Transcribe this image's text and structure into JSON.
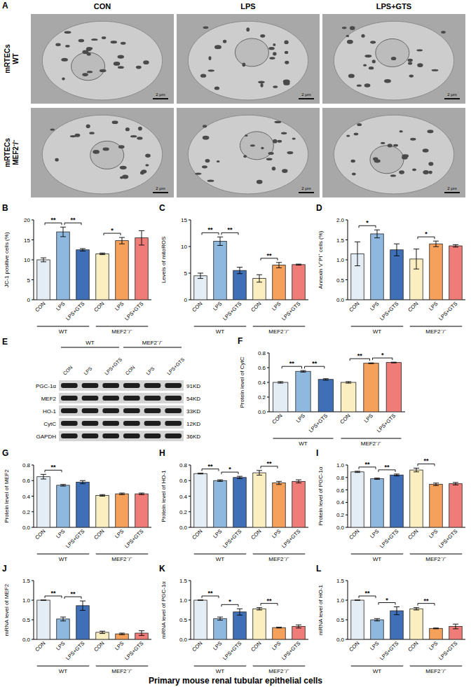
{
  "panel_a": {
    "panel": "A",
    "columns": [
      "CON",
      "LPS",
      "LPS+GTS"
    ],
    "rows": [
      {
        "label": [
          "mRTECs",
          "WT"
        ]
      },
      {
        "label": [
          "mRTECs",
          "MEF2⁻/⁻"
        ]
      }
    ],
    "scale_bar": "2 μm"
  },
  "panel_e": {
    "panel": "E",
    "groups": [
      {
        "label": "WT",
        "size": 3
      },
      {
        "label": "MEF2⁻/⁻",
        "size": 3
      }
    ],
    "lanes": [
      "CON",
      "LPS",
      "LPS+GTS",
      "CON",
      "LPS",
      "LPS+GTS"
    ],
    "rows": [
      {
        "name": "PGC-1α",
        "size": "91KD"
      },
      {
        "name": "MEF2",
        "size": "54KD"
      },
      {
        "name": "HO-1",
        "size": "33KD"
      },
      {
        "name": "CytC",
        "size": "12KD"
      },
      {
        "name": "GAPDH",
        "size": "36KD"
      }
    ]
  },
  "footer": "Primary mouse renal tubular epithelial cells",
  "chart_data": [
    {
      "type": "bar",
      "panel": "B",
      "y_label": "JC-1 positive cells (%)",
      "categories": [
        "CON",
        "LPS",
        "LPS+GTS",
        "CON",
        "LPS",
        "LPS+GTS"
      ],
      "groups": [
        {
          "label": "WT",
          "size": 3
        },
        {
          "label": "MEF2⁻/⁻",
          "size": 3
        }
      ],
      "values": [
        10,
        17,
        12.5,
        11.5,
        14.8,
        15.5
      ],
      "errors": [
        0.5,
        1.2,
        0.3,
        0.2,
        0.8,
        1.8
      ],
      "colors": [
        "#e4ecf4",
        "#8fb8de",
        "#3f6fb6",
        "#fbeec0",
        "#f5a15c",
        "#f07c78"
      ],
      "ylim": [
        0,
        20
      ],
      "yticks": [
        0,
        5,
        10,
        15,
        20
      ],
      "grid": false,
      "significance": [
        {
          "from": 0,
          "to": 1,
          "label": "**"
        },
        {
          "from": 1,
          "to": 2,
          "label": "**"
        },
        {
          "from": 3,
          "to": 4,
          "label": "*"
        }
      ]
    },
    {
      "type": "bar",
      "panel": "C",
      "y_label": "Levels of mitoROS",
      "categories": [
        "CON",
        "LPS",
        "LPS+GTS",
        "CON",
        "LPS",
        "LPS+GTS"
      ],
      "groups": [
        {
          "label": "WT",
          "size": 3
        },
        {
          "label": "MEF2⁻/⁻",
          "size": 3
        }
      ],
      "values": [
        4.5,
        11,
        5.5,
        4,
        6.5,
        6.6
      ],
      "errors": [
        0.5,
        0.8,
        0.6,
        0.7,
        0.5,
        0.1
      ],
      "colors": [
        "#e4ecf4",
        "#8fb8de",
        "#3f6fb6",
        "#fbeec0",
        "#f5a15c",
        "#f07c78"
      ],
      "ylim": [
        0,
        15
      ],
      "yticks": [
        0,
        5,
        10,
        15
      ],
      "grid": false,
      "significance": [
        {
          "from": 0,
          "to": 1,
          "label": "**"
        },
        {
          "from": 1,
          "to": 2,
          "label": "**"
        },
        {
          "from": 3,
          "to": 4,
          "label": "**"
        }
      ]
    },
    {
      "type": "bar",
      "panel": "D",
      "y_label": "Annexin V⁺PI⁺ cells (%)",
      "categories": [
        "CON",
        "LPS",
        "LPS+GTS",
        "CON",
        "LPS",
        "LPS+GTS"
      ],
      "groups": [
        {
          "label": "WT",
          "size": 3
        },
        {
          "label": "MEF2⁻/⁻",
          "size": 3
        }
      ],
      "values": [
        1.15,
        1.65,
        1.25,
        1.02,
        1.4,
        1.35
      ],
      "errors": [
        0.3,
        0.1,
        0.15,
        0.25,
        0.07,
        0.03
      ],
      "colors": [
        "#e4ecf4",
        "#8fb8de",
        "#3f6fb6",
        "#fbeec0",
        "#f5a15c",
        "#f07c78"
      ],
      "ylim": [
        0,
        2
      ],
      "yticks": [
        {
          "value": 0,
          "label": "0.0"
        },
        {
          "value": 0.5,
          "label": "0.5"
        },
        {
          "value": 1,
          "label": "1.0"
        },
        {
          "value": 1.5,
          "label": "1.5"
        },
        {
          "value": 2,
          "label": "2.0"
        }
      ],
      "grid": false,
      "significance": [
        {
          "from": 0,
          "to": 1,
          "label": "*"
        },
        {
          "from": 3,
          "to": 4,
          "label": "*"
        }
      ]
    },
    {
      "type": "bar",
      "panel": "F",
      "y_label": "Protein level of CytC",
      "categories": [
        "CON",
        "LPS",
        "LPS+GTS",
        "CON",
        "LPS",
        "LPS+GTS"
      ],
      "groups": [
        {
          "label": "WT",
          "size": 3
        },
        {
          "label": "MEF2⁻/⁻",
          "size": 3
        }
      ],
      "values": [
        0.4,
        0.55,
        0.44,
        0.4,
        0.66,
        0.67
      ],
      "errors": [
        0.01,
        0.01,
        0.01,
        0.01,
        0.005,
        0.005
      ],
      "colors": [
        "#e4ecf4",
        "#8fb8de",
        "#3f6fb6",
        "#fbeec0",
        "#f5a15c",
        "#f07c78"
      ],
      "ylim": [
        0,
        0.8
      ],
      "yticks": [
        {
          "value": 0,
          "label": "0.0"
        },
        0.2,
        0.4,
        0.6,
        0.8
      ],
      "grid": false,
      "significance": [
        {
          "from": 0,
          "to": 1,
          "label": "**"
        },
        {
          "from": 1,
          "to": 2,
          "label": "**"
        },
        {
          "from": 3,
          "to": 4,
          "label": "**"
        },
        {
          "from": 4,
          "to": 5,
          "label": "*"
        }
      ]
    },
    {
      "type": "bar",
      "panel": "G",
      "y_label": "Protein level of MEF2",
      "categories": [
        "CON",
        "LPS",
        "LPS+GTS",
        "CON",
        "LPS",
        "LPS+GTS"
      ],
      "groups": [
        {
          "label": "WT",
          "size": 3
        },
        {
          "label": "MEF2⁻/⁻",
          "size": 3
        }
      ],
      "values": [
        0.65,
        0.54,
        0.58,
        0.41,
        0.43,
        0.43
      ],
      "errors": [
        0.03,
        0.01,
        0.02,
        0.01,
        0.01,
        0.01
      ],
      "colors": [
        "#e4ecf4",
        "#8fb8de",
        "#3f6fb6",
        "#fbeec0",
        "#f5a15c",
        "#f07c78"
      ],
      "ylim": [
        0,
        0.8
      ],
      "yticks": [
        {
          "value": 0,
          "label": "0.0"
        },
        0.2,
        0.4,
        0.6,
        0.8
      ],
      "grid": false,
      "significance": [
        {
          "from": 0,
          "to": 1,
          "label": "**"
        }
      ]
    },
    {
      "type": "bar",
      "panel": "H",
      "y_label": "Protein level of HO-1",
      "categories": [
        "CON",
        "LPS",
        "LPS+GTS",
        "CON",
        "LPS",
        "LPS+GTS"
      ],
      "groups": [
        {
          "label": "WT",
          "size": 3
        },
        {
          "label": "MEF2⁻/⁻",
          "size": 3
        }
      ],
      "values": [
        0.69,
        0.6,
        0.64,
        0.7,
        0.57,
        0.59
      ],
      "errors": [
        0.005,
        0.01,
        0.015,
        0.03,
        0.02,
        0.02
      ],
      "colors": [
        "#e4ecf4",
        "#8fb8de",
        "#3f6fb6",
        "#fbeec0",
        "#f5a15c",
        "#f07c78"
      ],
      "ylim": [
        0,
        0.8
      ],
      "yticks": [
        {
          "value": 0,
          "label": "0.0"
        },
        0.2,
        0.4,
        0.6,
        0.8
      ],
      "grid": false,
      "significance": [
        {
          "from": 0,
          "to": 1,
          "label": "**"
        },
        {
          "from": 1,
          "to": 2,
          "label": "*"
        },
        {
          "from": 3,
          "to": 4,
          "label": "**"
        }
      ]
    },
    {
      "type": "bar",
      "panel": "I",
      "y_label": "Protein level of PGC-1α",
      "categories": [
        "CON",
        "LPS",
        "LPS+GTS",
        "CON",
        "LPS",
        "LPS+GTS"
      ],
      "groups": [
        {
          "label": "WT",
          "size": 3
        },
        {
          "label": "MEF2⁻/⁻",
          "size": 3
        }
      ],
      "values": [
        0.89,
        0.78,
        0.84,
        0.92,
        0.69,
        0.7
      ],
      "errors": [
        0.01,
        0.01,
        0.015,
        0.03,
        0.02,
        0.02
      ],
      "colors": [
        "#e4ecf4",
        "#8fb8de",
        "#3f6fb6",
        "#fbeec0",
        "#f5a15c",
        "#f07c78"
      ],
      "ylim": [
        0,
        1
      ],
      "yticks": [
        {
          "value": 0,
          "label": "0.0"
        },
        0.2,
        0.4,
        0.6,
        0.8,
        {
          "value": 1,
          "label": "1.0"
        }
      ],
      "grid": false,
      "significance": [
        {
          "from": 0,
          "to": 1,
          "label": "**"
        },
        {
          "from": 1,
          "to": 2,
          "label": "**"
        },
        {
          "from": 3,
          "to": 4,
          "label": "**"
        }
      ]
    },
    {
      "type": "bar",
      "panel": "J",
      "y_label": "mRNA level of MEF2",
      "categories": [
        "CON",
        "LPS",
        "LPS+GTS",
        "CON",
        "LPS",
        "LPS+GTS"
      ],
      "groups": [
        {
          "label": "WT",
          "size": 3
        },
        {
          "label": "MEF2⁻/⁻",
          "size": 3
        }
      ],
      "values": [
        1,
        0.52,
        0.86,
        0.18,
        0.14,
        0.16
      ],
      "errors": [
        0,
        0.05,
        0.12,
        0.03,
        0.02,
        0.06
      ],
      "colors": [
        "#e4ecf4",
        "#8fb8de",
        "#3f6fb6",
        "#fbeec0",
        "#f5a15c",
        "#f07c78"
      ],
      "ylim": [
        0,
        1.5
      ],
      "yticks": [
        {
          "value": 0,
          "label": "0.0"
        },
        0.5,
        {
          "value": 1,
          "label": "1.0"
        },
        1.5
      ],
      "grid": false,
      "significance": [
        {
          "from": 0,
          "to": 1,
          "label": "**"
        },
        {
          "from": 1,
          "to": 2,
          "label": "**"
        }
      ]
    },
    {
      "type": "bar",
      "panel": "K",
      "y_label": "mRNA level of PGC-1α",
      "categories": [
        "CON",
        "LPS",
        "LPS+GTS",
        "CON",
        "LPS",
        "LPS+GTS"
      ],
      "groups": [
        {
          "label": "WT",
          "size": 3
        },
        {
          "label": "MEF2⁻/⁻",
          "size": 3
        }
      ],
      "values": [
        1,
        0.53,
        0.7,
        0.78,
        0.3,
        0.33
      ],
      "errors": [
        0,
        0.04,
        0.08,
        0.03,
        0.01,
        0.04
      ],
      "colors": [
        "#e4ecf4",
        "#8fb8de",
        "#3f6fb6",
        "#fbeec0",
        "#f5a15c",
        "#f07c78"
      ],
      "ylim": [
        0,
        1.5
      ],
      "yticks": [
        {
          "value": 0,
          "label": "0.0"
        },
        0.5,
        {
          "value": 1,
          "label": "1.0"
        },
        1.5
      ],
      "grid": false,
      "significance": [
        {
          "from": 0,
          "to": 1,
          "label": "**"
        },
        {
          "from": 1,
          "to": 2,
          "label": "*"
        },
        {
          "from": 3,
          "to": 4,
          "label": "**"
        }
      ]
    },
    {
      "type": "bar",
      "panel": "L",
      "y_label": "mRNA level of HO-1",
      "categories": [
        "CON",
        "LPS",
        "LPS+GTS",
        "CON",
        "LPS",
        "LPS+GTS"
      ],
      "groups": [
        {
          "label": "WT",
          "size": 3
        },
        {
          "label": "MEF2⁻/⁻",
          "size": 3
        }
      ],
      "values": [
        1,
        0.5,
        0.73,
        0.78,
        0.28,
        0.33
      ],
      "errors": [
        0,
        0.03,
        0.1,
        0.03,
        0.01,
        0.06
      ],
      "colors": [
        "#e4ecf4",
        "#8fb8de",
        "#3f6fb6",
        "#fbeec0",
        "#f5a15c",
        "#f07c78"
      ],
      "ylim": [
        0,
        1.5
      ],
      "yticks": [
        {
          "value": 0,
          "label": "0.0"
        },
        0.5,
        {
          "value": 1,
          "label": "1.0"
        },
        1.5
      ],
      "grid": false,
      "significance": [
        {
          "from": 0,
          "to": 1,
          "label": "**"
        },
        {
          "from": 1,
          "to": 2,
          "label": "*"
        },
        {
          "from": 3,
          "to": 4,
          "label": "**"
        }
      ]
    }
  ]
}
